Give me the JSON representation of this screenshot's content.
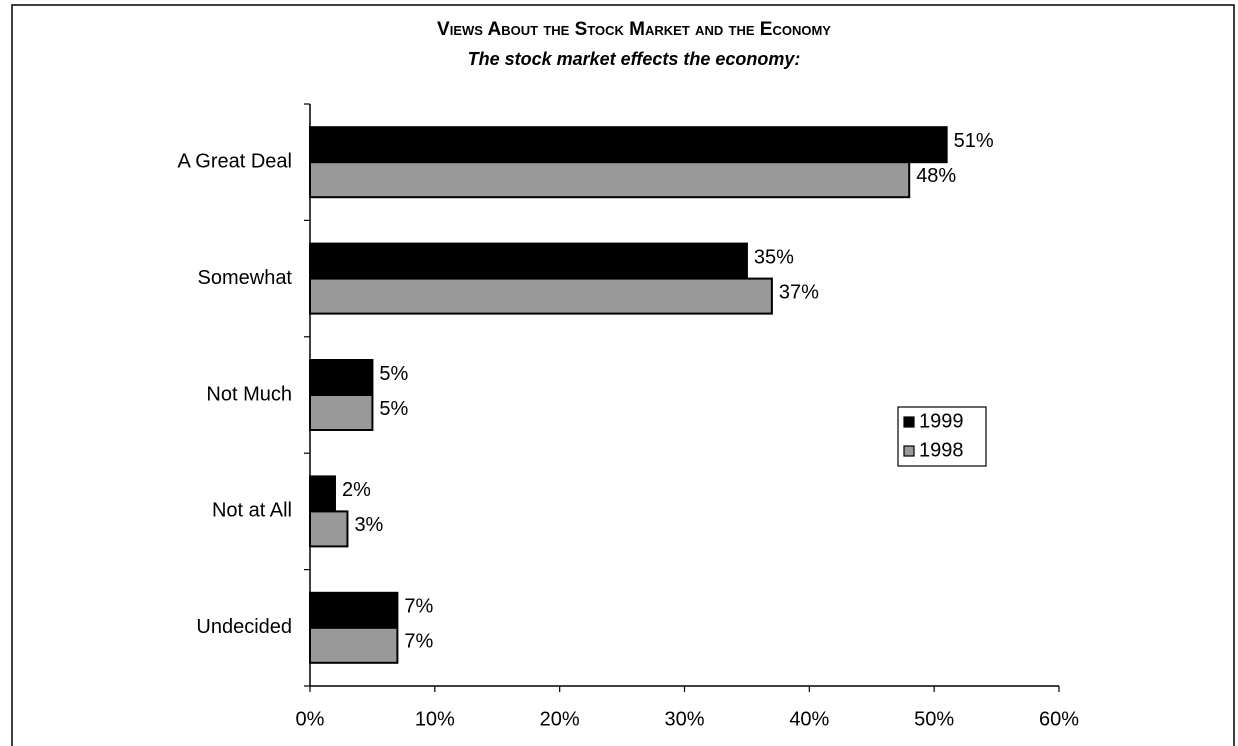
{
  "chart_data": {
    "type": "hbar",
    "title": "Views About the Stock Market and the Economy",
    "subtitle": "The stock market effects the economy:",
    "categories": [
      "A Great Deal",
      "Somewhat",
      "Not Much",
      "Not at All",
      "Undecided"
    ],
    "series": [
      {
        "name": "1999",
        "color": "#000000",
        "values": [
          51,
          35,
          5,
          2,
          7
        ],
        "value_labels": [
          "51%",
          "35%",
          "5%",
          "2%",
          "7%"
        ]
      },
      {
        "name": "1998",
        "color": "#999999",
        "values": [
          48,
          37,
          5,
          3,
          7
        ],
        "value_labels": [
          "48%",
          "37%",
          "5%",
          "3%",
          "7%"
        ]
      }
    ],
    "xlim": [
      0,
      60
    ],
    "xticks": [
      {
        "value": 0,
        "label": "0%"
      },
      {
        "value": 10,
        "label": "10%"
      },
      {
        "value": 20,
        "label": "20%"
      },
      {
        "value": 30,
        "label": "30%"
      },
      {
        "value": 40,
        "label": "40%"
      },
      {
        "value": 50,
        "label": "50%"
      },
      {
        "value": 60,
        "label": "60%"
      }
    ],
    "grid": false,
    "legend": "right"
  }
}
